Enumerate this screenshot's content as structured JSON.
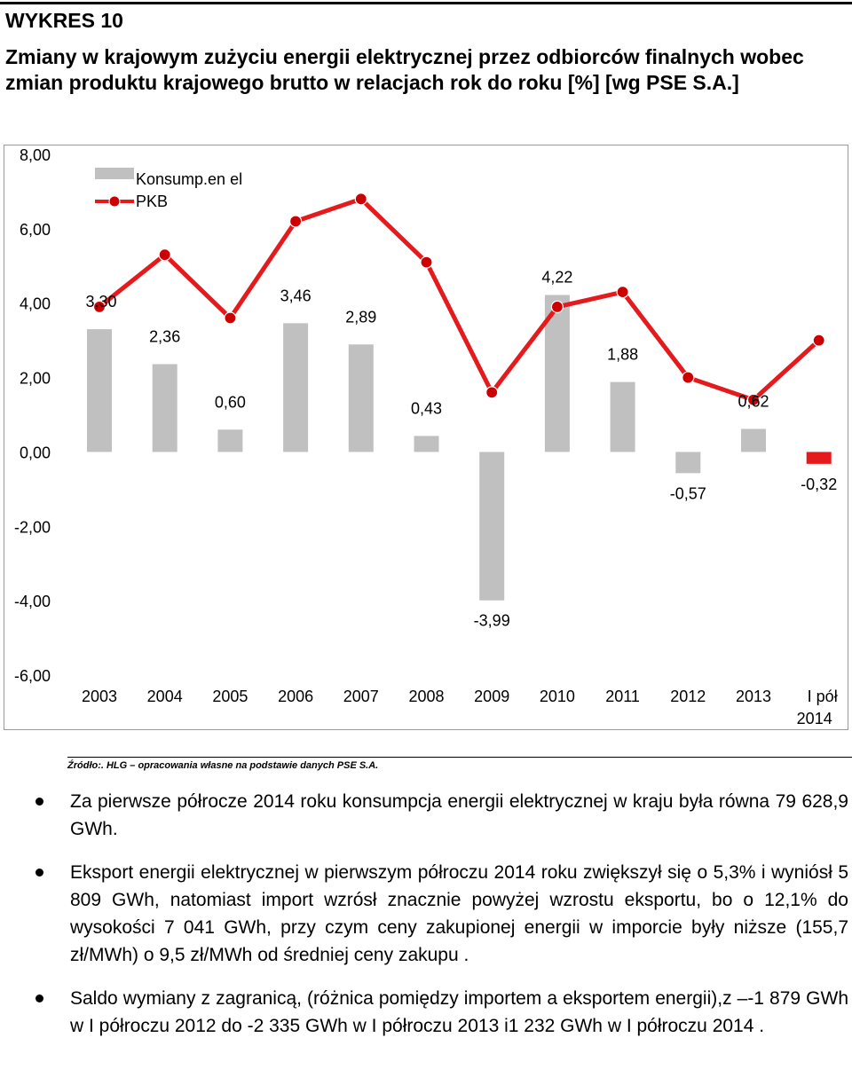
{
  "heading": "WYKRES 10",
  "title": "Zmiany w  krajowym zużyciu energii elektrycznej przez  odbiorców finalnych wobec  zmian produktu krajowego brutto  w relacjach rok do roku [%] [wg PSE S.A.]",
  "chart_data": {
    "type": "bar",
    "categories": [
      "2003",
      "2004",
      "2005",
      "2006",
      "2007",
      "2008",
      "2009",
      "2010",
      "2011",
      "2012",
      "2013",
      "I pół 2014"
    ],
    "series": [
      {
        "name": "Konsump.en el",
        "type": "bar",
        "color": "#c0c0c0",
        "values": [
          3.3,
          2.36,
          0.6,
          3.46,
          2.89,
          0.43,
          -3.99,
          4.22,
          1.88,
          -0.57,
          0.62,
          -0.32
        ],
        "labels": [
          "3,30",
          "2,36",
          "0,60",
          "3,46",
          "2,89",
          "0,43",
          "-3,99",
          "4,22",
          "1,88",
          "-0,57",
          "0,62",
          "-0,32"
        ],
        "last_bar_color": "#e41a1c"
      },
      {
        "name": "PKB",
        "type": "line",
        "color": "#e41a1c",
        "marker_color": "#cc0000",
        "values": [
          3.9,
          5.3,
          3.6,
          6.2,
          6.8,
          5.1,
          1.6,
          3.9,
          4.3,
          2.0,
          1.4,
          3.0
        ]
      }
    ],
    "ylim": [
      -6,
      8
    ],
    "yticks": [
      8,
      6,
      4,
      2,
      0,
      -2,
      -4,
      -6
    ],
    "ytick_labels": [
      "8,00",
      "6,00",
      "4,00",
      "2,00",
      "0,00",
      "-2,00",
      "-4,00",
      "-6,00"
    ],
    "legend_position": "top-left",
    "grid": false
  },
  "source": "Źródło:. HLG – opracowania własne na podstawie danych PSE  S.A.",
  "bullets": [
    "Za pierwsze półrocze 2014 roku konsumpcja energii elektrycznej w kraju była równa 79 628,9 GWh.",
    "Eksport energii elektrycznej w pierwszym półroczu 2014 roku zwiększył się o 5,3% i wyniósł 5 809 GWh, natomiast import wzrósł znacznie powyżej wzrostu eksportu, bo o 12,1% do wysokości 7 041 GWh, przy czym ceny zakupionej energii w imporcie były niższe (155,7 zł/MWh) o 9,5 zł/MWh od średniej ceny zakupu .",
    "Saldo wymiany z zagranicą, (różnica pomiędzy importem a eksportem energii),z –-1 879 GWh w I półroczu 2012 do -2 335 GWh w I półroczu 2013 i1 232 GWh w I półroczu 2014 ."
  ]
}
